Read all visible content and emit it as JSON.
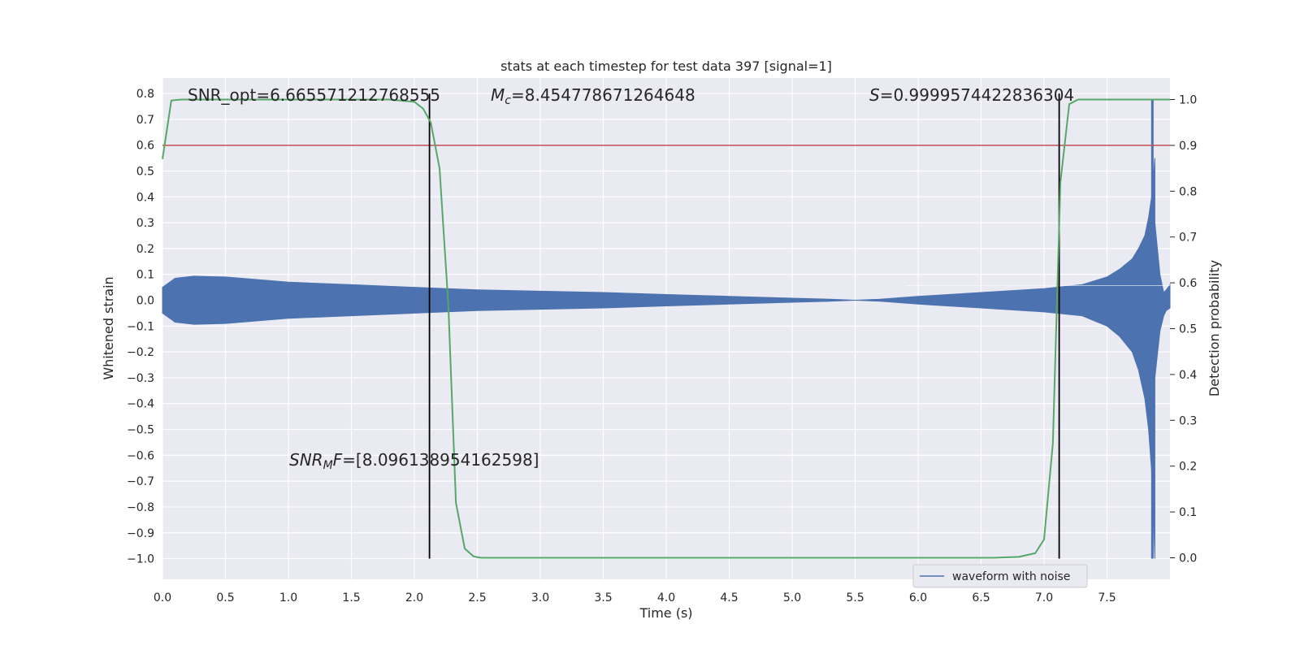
{
  "chart_data": {
    "type": "line",
    "title": "stats at each timestep for test data 397 [signal=1]",
    "xlabel": "Time (s)",
    "ylabel": "Whitened strain",
    "y2label": "Detection probability",
    "xlim": [
      0.0,
      8.0
    ],
    "ylim": [
      -1.08,
      0.86
    ],
    "y2lim": [
      -0.047,
      1.047
    ],
    "xticks": [
      "0.0",
      "0.5",
      "1.0",
      "1.5",
      "2.0",
      "2.5",
      "3.0",
      "3.5",
      "4.0",
      "4.5",
      "5.0",
      "5.5",
      "6.0",
      "6.5",
      "7.0",
      "7.5"
    ],
    "yticks": [
      "0.8",
      "0.7",
      "0.6",
      "0.5",
      "0.4",
      "0.3",
      "0.2",
      "0.1",
      "0.0",
      "−0.1",
      "−0.2",
      "−0.3",
      "−0.4",
      "−0.5",
      "−0.6",
      "−0.7",
      "−0.8",
      "−0.9",
      "−1.0"
    ],
    "y2ticks": [
      "1.0",
      "0.9",
      "0.8",
      "0.7",
      "0.6",
      "0.5",
      "0.4",
      "0.3",
      "0.2",
      "0.1",
      "0.0"
    ],
    "grid": true,
    "legend": {
      "position": "lower-right",
      "entries": [
        "waveform with noise"
      ]
    },
    "colors": {
      "waveform": "#4c72b0",
      "probability": "#55a868",
      "threshold": "#c44e52",
      "vlines": "#000000",
      "background": "#eaeaf2",
      "grid": "#ffffff"
    },
    "series": [
      {
        "name": "waveform with noise",
        "axis": "left",
        "kind": "envelope",
        "x": [
          0.0,
          0.1,
          0.25,
          0.5,
          1.0,
          1.5,
          2.0,
          2.5,
          3.0,
          3.5,
          4.0,
          4.5,
          5.0,
          5.3,
          5.5,
          5.7,
          6.0,
          6.5,
          7.0,
          7.3,
          7.5,
          7.6,
          7.7,
          7.75,
          7.8,
          7.83,
          7.86,
          7.88
        ],
        "upper": [
          0.05,
          0.085,
          0.093,
          0.09,
          0.07,
          0.06,
          0.05,
          0.04,
          0.035,
          0.03,
          0.022,
          0.015,
          0.008,
          0.004,
          0.0,
          0.004,
          0.015,
          0.03,
          0.045,
          0.06,
          0.09,
          0.12,
          0.16,
          0.2,
          0.25,
          0.32,
          0.42,
          0.55
        ],
        "lower": [
          -0.05,
          -0.085,
          -0.093,
          -0.09,
          -0.07,
          -0.06,
          -0.05,
          -0.04,
          -0.035,
          -0.03,
          -0.022,
          -0.015,
          -0.008,
          -0.004,
          0.0,
          -0.004,
          -0.015,
          -0.03,
          -0.045,
          -0.06,
          -0.1,
          -0.14,
          -0.2,
          -0.27,
          -0.38,
          -0.5,
          -0.7,
          -1.0
        ],
        "tail_x": [
          7.88,
          7.92,
          7.95,
          7.97,
          8.0
        ],
        "tail_upper": [
          0.3,
          0.1,
          0.03,
          0.04,
          0.06
        ],
        "tail_lower": [
          -0.3,
          -0.12,
          -0.06,
          -0.04,
          -0.03
        ],
        "spike": {
          "x": 7.86,
          "ymin": -1.0,
          "ymax": 0.78
        }
      },
      {
        "name": "",
        "axis": "right",
        "kind": "line",
        "x": [
          0.0,
          0.07,
          0.15,
          0.3,
          0.5,
          1.0,
          1.5,
          1.8,
          2.0,
          2.07,
          2.13,
          2.2,
          2.27,
          2.33,
          2.4,
          2.47,
          2.53,
          2.6,
          3.0,
          4.0,
          5.0,
          6.0,
          6.6,
          6.8,
          6.93,
          7.0,
          7.07,
          7.13,
          7.2,
          7.27,
          7.4,
          8.0
        ],
        "y": [
          0.87,
          0.998,
          1.0,
          1.0,
          1.0,
          1.0,
          1.0,
          1.0,
          0.995,
          0.98,
          0.95,
          0.85,
          0.55,
          0.12,
          0.02,
          0.003,
          0.0,
          0.0,
          0.0,
          0.0,
          0.0,
          0.0,
          0.0,
          0.002,
          0.01,
          0.04,
          0.25,
          0.82,
          0.99,
          1.0,
          1.0,
          1.0
        ]
      }
    ],
    "threshold": {
      "axis": "right",
      "y": 0.9
    },
    "vlines": [
      {
        "x": 2.12,
        "ymin": -1.0,
        "ymax": 0.8
      },
      {
        "x": 7.12,
        "ymin": -1.0,
        "ymax": 0.8
      }
    ],
    "annotations": [
      {
        "id": "snr_opt",
        "text": "SNR_opt=6.665571212768555",
        "x": 0.2,
        "y": 0.8
      },
      {
        "id": "mc",
        "sym": "M",
        "sub": "c",
        "rest": "=8.454778671264648",
        "x": 2.6,
        "y": 0.8
      },
      {
        "id": "s",
        "sym": "S",
        "rest": "=0.9999574422836304",
        "x": 5.6,
        "y": 0.8
      },
      {
        "id": "snrmf",
        "sym": "SNR",
        "sub": "M",
        "sym2": "F",
        "rest": "=[8.096138954162598]",
        "x": 1.0,
        "y": -0.62
      }
    ]
  }
}
